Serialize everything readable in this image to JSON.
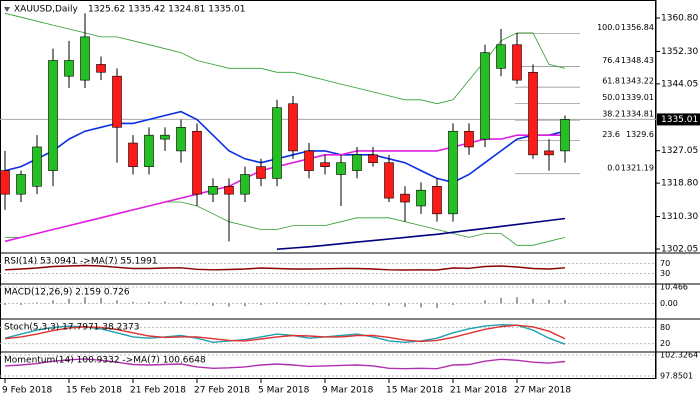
{
  "chart_data": {
    "type": "candlestick",
    "title": "XAUUSD,Daily",
    "header_values": "1325.62 1335.42 1324.81 1335.01",
    "categories": [
      "9 Feb 2018",
      null,
      null,
      null,
      "15 Feb 2018",
      null,
      null,
      null,
      "21 Feb 2018",
      null,
      null,
      null,
      "27 Feb 2018",
      null,
      null,
      null,
      "5 Mar 2018",
      null,
      null,
      null,
      "9 Mar 2018",
      null,
      null,
      null,
      "15 Mar 2018",
      null,
      null,
      null,
      "21 Mar 2018",
      null,
      null,
      null,
      "27 Mar 2018",
      null,
      null,
      null
    ],
    "open": [
      1322,
      1316,
      1318,
      1322,
      1346,
      1345,
      1349,
      1346,
      1329,
      1323,
      1330,
      1327,
      1332,
      1316,
      1318,
      1316,
      1323,
      1320,
      1339,
      1327,
      1324,
      1321,
      1322,
      1326,
      1324,
      1316,
      1313,
      1318,
      1311,
      1332,
      1330,
      1348,
      1354,
      1347,
      1327,
      1327
    ],
    "high": [
      1327,
      1322,
      1331,
      1353,
      1355,
      1362,
      1351,
      1348,
      1331,
      1333,
      1333,
      1335,
      1334,
      1320,
      1320,
      1323,
      1325,
      1340,
      1341,
      1329,
      1326,
      1326,
      1328,
      1328,
      1326,
      1318,
      1319,
      1320,
      1334,
      1334,
      1354,
      1358,
      1357,
      1349,
      1330,
      1336
    ],
    "low": [
      1312,
      1314,
      1316,
      1318,
      1343,
      1343,
      1345,
      1324,
      1321,
      1321,
      1327,
      1324,
      1313,
      1314,
      1304,
      1314,
      1318,
      1318,
      1325,
      1320,
      1321,
      1313,
      1320,
      1323,
      1314,
      1309,
      1311,
      1309,
      1309,
      1326,
      1328,
      1346,
      1344,
      1325,
      1322,
      1324
    ],
    "close": [
      1316,
      1321,
      1328,
      1350,
      1350,
      1356,
      1347,
      1333,
      1323,
      1331,
      1331,
      1333,
      1316,
      1318,
      1316,
      1321,
      1320,
      1338,
      1327,
      1322,
      1323,
      1324,
      1326,
      1324,
      1315,
      1314,
      1317,
      1311,
      1332,
      1328,
      1352,
      1354,
      1345,
      1326,
      1326,
      1335.01
    ],
    "up_color": "#22c022",
    "down_color": "#ff1a1a",
    "ylim": [
      1301.29,
      1365.38
    ],
    "yticks": [
      {
        "value": 1360.8,
        "label": "1360.80"
      },
      {
        "value": 1352.3,
        "label": "1352.30"
      },
      1344.05,
      1327.05,
      {
        "value": 1318.8,
        "label": "1318.80"
      },
      {
        "value": 1310.3,
        "label": "1310.30"
      },
      1302.05
    ],
    "current_price": 1335.01,
    "fib_levels": [
      {
        "level": "100.0",
        "value": 1356.84
      },
      {
        "level": "76.4",
        "value": 1348.43
      },
      {
        "level": "61.8",
        "value": 1343.22
      },
      {
        "level": "50.0",
        "value": 1339.01
      },
      {
        "level": "38.2",
        "value": 1334.81
      },
      {
        "level": "23.6",
        "value": 1329.6
      },
      {
        "level": "0.0",
        "value": 1321.19
      }
    ],
    "series": [
      {
        "name": "upper band",
        "color": "#2e9e2e",
        "values": [
          1362,
          1361,
          1360,
          1359,
          1358,
          1357,
          1356,
          1356,
          1355,
          1354,
          1353,
          1352,
          1350,
          1349,
          1348,
          1348,
          1348,
          1347,
          1347,
          1346,
          1345,
          1344,
          1343,
          1342,
          1341,
          1340,
          1340,
          1339,
          1340,
          1345,
          1350,
          1355,
          1357,
          1357,
          1349,
          1348
        ]
      },
      {
        "name": "lower band",
        "color": "#2e9e2e",
        "values": [
          1305,
          1305,
          1306,
          1307,
          1308,
          1309,
          1310,
          1311,
          1312,
          1313,
          1314,
          1314,
          1313,
          1311,
          1309,
          1308,
          1307,
          1307,
          1308,
          1308,
          1308,
          1309,
          1310,
          1310,
          1310,
          1309,
          1308,
          1307,
          1306,
          1305,
          1306,
          1306,
          1303,
          1303,
          1304,
          1305
        ]
      },
      {
        "name": "fast MA",
        "color": "#0a2ee0",
        "values": [
          1322,
          1323,
          1325,
          1327,
          1330,
          1332,
          1333,
          1334,
          1334,
          1335,
          1336,
          1337,
          1335,
          1331,
          1327,
          1325,
          1324,
          1325,
          1326,
          1327,
          1327,
          1326,
          1326,
          1326,
          1325,
          1324,
          1322,
          1320,
          1319,
          1321,
          1324,
          1327,
          1330,
          1331,
          1331,
          1332
        ]
      },
      {
        "name": "slow MA",
        "color": "#e020e0",
        "values": [
          1304,
          1305,
          1306,
          1307,
          1308,
          1309,
          1310,
          1311,
          1312,
          1313,
          1314,
          1315,
          1316,
          1317,
          1318,
          1320,
          1322,
          1323,
          1324,
          1325,
          1326,
          1326,
          1327,
          1327,
          1327,
          1327,
          1327,
          1327,
          1328,
          1329,
          1330,
          1330,
          1331,
          1331,
          1331,
          1331
        ]
      },
      {
        "name": "long MA",
        "color": "#000080",
        "values": [
          null,
          null,
          null,
          null,
          null,
          null,
          null,
          null,
          null,
          null,
          null,
          null,
          null,
          null,
          null,
          null,
          null,
          1302,
          1302.3,
          1302.6,
          1303,
          1303.4,
          1303.8,
          1304.2,
          1304.6,
          1305,
          1305.4,
          1305.8,
          1306.3,
          1306.8,
          1307.3,
          1307.8,
          1308.3,
          1308.8,
          1309.3,
          1309.8
        ]
      }
    ],
    "panels": [
      {
        "type": "line",
        "label": "RSI(14) 53.0941 ->MA(7) 55.1991",
        "ylim": [
          0,
          100
        ],
        "yticks": [
          70,
          30
        ],
        "series": [
          {
            "color": "#8b0000",
            "values": [
              45,
              48,
              52,
              58,
              60,
              62,
              60,
              55,
              50,
              50,
              52,
              53,
              47,
              45,
              46,
              48,
              52,
              50,
              48,
              48,
              49,
              50,
              50,
              48,
              45,
              44,
              45,
              44,
              52,
              51,
              58,
              60,
              56,
              50,
              48,
              53
            ]
          }
        ]
      },
      {
        "type": "bar",
        "label": "MACD(12,26,9) 2.159 0.726",
        "ylim": [
          -8,
          10.466
        ],
        "yticks": [
          10.466,
          {
            "value": 0,
            "label": "0.00"
          }
        ],
        "series": [
          {
            "color": "#808080",
            "values": [
              -1,
              -1,
              0.5,
              2,
              3,
              4,
              3.5,
              2,
              1,
              1,
              1.2,
              1.3,
              -0.5,
              -1.5,
              -2,
              -1.8,
              -1,
              0.5,
              0.3,
              -0.5,
              -0.8,
              -0.6,
              -0.4,
              -0.6,
              -1.5,
              -2.2,
              -2.5,
              -2.8,
              -1,
              0.2,
              2,
              3.5,
              4,
              3,
              2.2,
              2.159
            ]
          }
        ]
      },
      {
        "type": "line",
        "label": "Stoch(5,3,3) 17.7971 38.2373",
        "ylim": [
          0,
          100
        ],
        "yticks": [
          80,
          20
        ],
        "series": [
          {
            "color": "#20a0b0",
            "values": [
              40,
              55,
              70,
              80,
              85,
              82,
              75,
              60,
              45,
              40,
              45,
              50,
              40,
              25,
              30,
              35,
              45,
              55,
              50,
              40,
              45,
              50,
              55,
              45,
              30,
              25,
              30,
              40,
              60,
              75,
              85,
              90,
              88,
              70,
              40,
              17.7971
            ]
          },
          {
            "color": "#e03030",
            "values": [
              38,
              45,
              55,
              68,
              78,
              82,
              80,
              72,
              60,
              48,
              43,
              45,
              45,
              38,
              32,
              30,
              37,
              45,
              50,
              48,
              45,
              45,
              50,
              50,
              43,
              33,
              28,
              32,
              43,
              58,
              73,
              83,
              88,
              82,
              66,
              38.2373
            ]
          }
        ]
      },
      {
        "type": "line",
        "label": "Momentum(14) 100.9332 ->MA(7) 100.6648",
        "ylim": [
          97.8501,
          102.3264
        ],
        "yticks": [
          102.3264,
          97.8501
        ],
        "series": [
          {
            "color": "#b030b0",
            "values": [
              100,
              100.2,
              100.5,
              101,
              101.3,
              101.5,
              101.2,
              100.8,
              100.3,
              100.2,
              100.3,
              100.4,
              99.8,
              99.5,
              99.6,
              99.8,
              100.2,
              100.4,
              100.2,
              99.9,
              100,
              100.1,
              100.2,
              100,
              99.5,
              99.4,
              99.5,
              99.4,
              100.2,
              100.3,
              101,
              101.4,
              101.2,
              100.8,
              100.6,
              100.9332
            ]
          }
        ]
      }
    ]
  }
}
